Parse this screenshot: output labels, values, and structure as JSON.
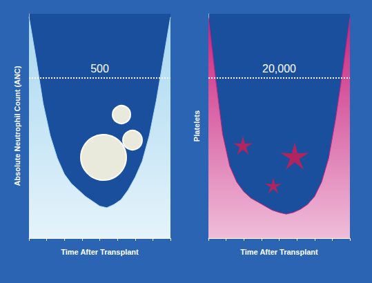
{
  "chart_data": [
    {
      "type": "area",
      "y_label": "Absolute Neutrophil Count (ANC)",
      "x_label": "Time After Transplant",
      "x": [
        0,
        1,
        2,
        3,
        4,
        5,
        6,
        7,
        8,
        9,
        10,
        11,
        12,
        13,
        14,
        15,
        16,
        17,
        18,
        19,
        20
      ],
      "values": [
        690,
        560,
        420,
        320,
        250,
        200,
        170,
        150,
        130,
        115,
        100,
        95,
        105,
        120,
        150,
        190,
        240,
        320,
        430,
        560,
        690
      ],
      "xlim": [
        0,
        20
      ],
      "xticks": [
        0,
        2.5,
        5,
        7.5,
        10,
        12.5,
        15,
        17.5,
        20
      ],
      "ylim": [
        0,
        700
      ],
      "annotations": [
        {
          "y": 500,
          "text": "500"
        }
      ],
      "color": "#a9d8f0",
      "line_style": "dotted",
      "tick_labels": false,
      "grid": false
    },
    {
      "type": "area",
      "y_label": "Platelets",
      "x_label": "Time After Transplant",
      "x": [
        0,
        1,
        2,
        3,
        4,
        5,
        6,
        7,
        8,
        9,
        10,
        11,
        12,
        13,
        14,
        15,
        16,
        17,
        18,
        19,
        20
      ],
      "values": [
        27500,
        20000,
        13000,
        9000,
        7000,
        5800,
        5000,
        4500,
        4000,
        3500,
        3200,
        3000,
        3200,
        3600,
        4200,
        5200,
        7000,
        10000,
        15000,
        21000,
        27500
      ],
      "xlim": [
        0,
        20
      ],
      "xticks": [
        0,
        2.5,
        5,
        7.5,
        10,
        12.5,
        15,
        17.5,
        20
      ],
      "ylim": [
        0,
        28000
      ],
      "annotations": [
        {
          "y": 20000,
          "text": "20,000"
        }
      ],
      "color": "#c8237f",
      "line_style": "dotted",
      "tick_labels": false,
      "grid": false
    }
  ]
}
